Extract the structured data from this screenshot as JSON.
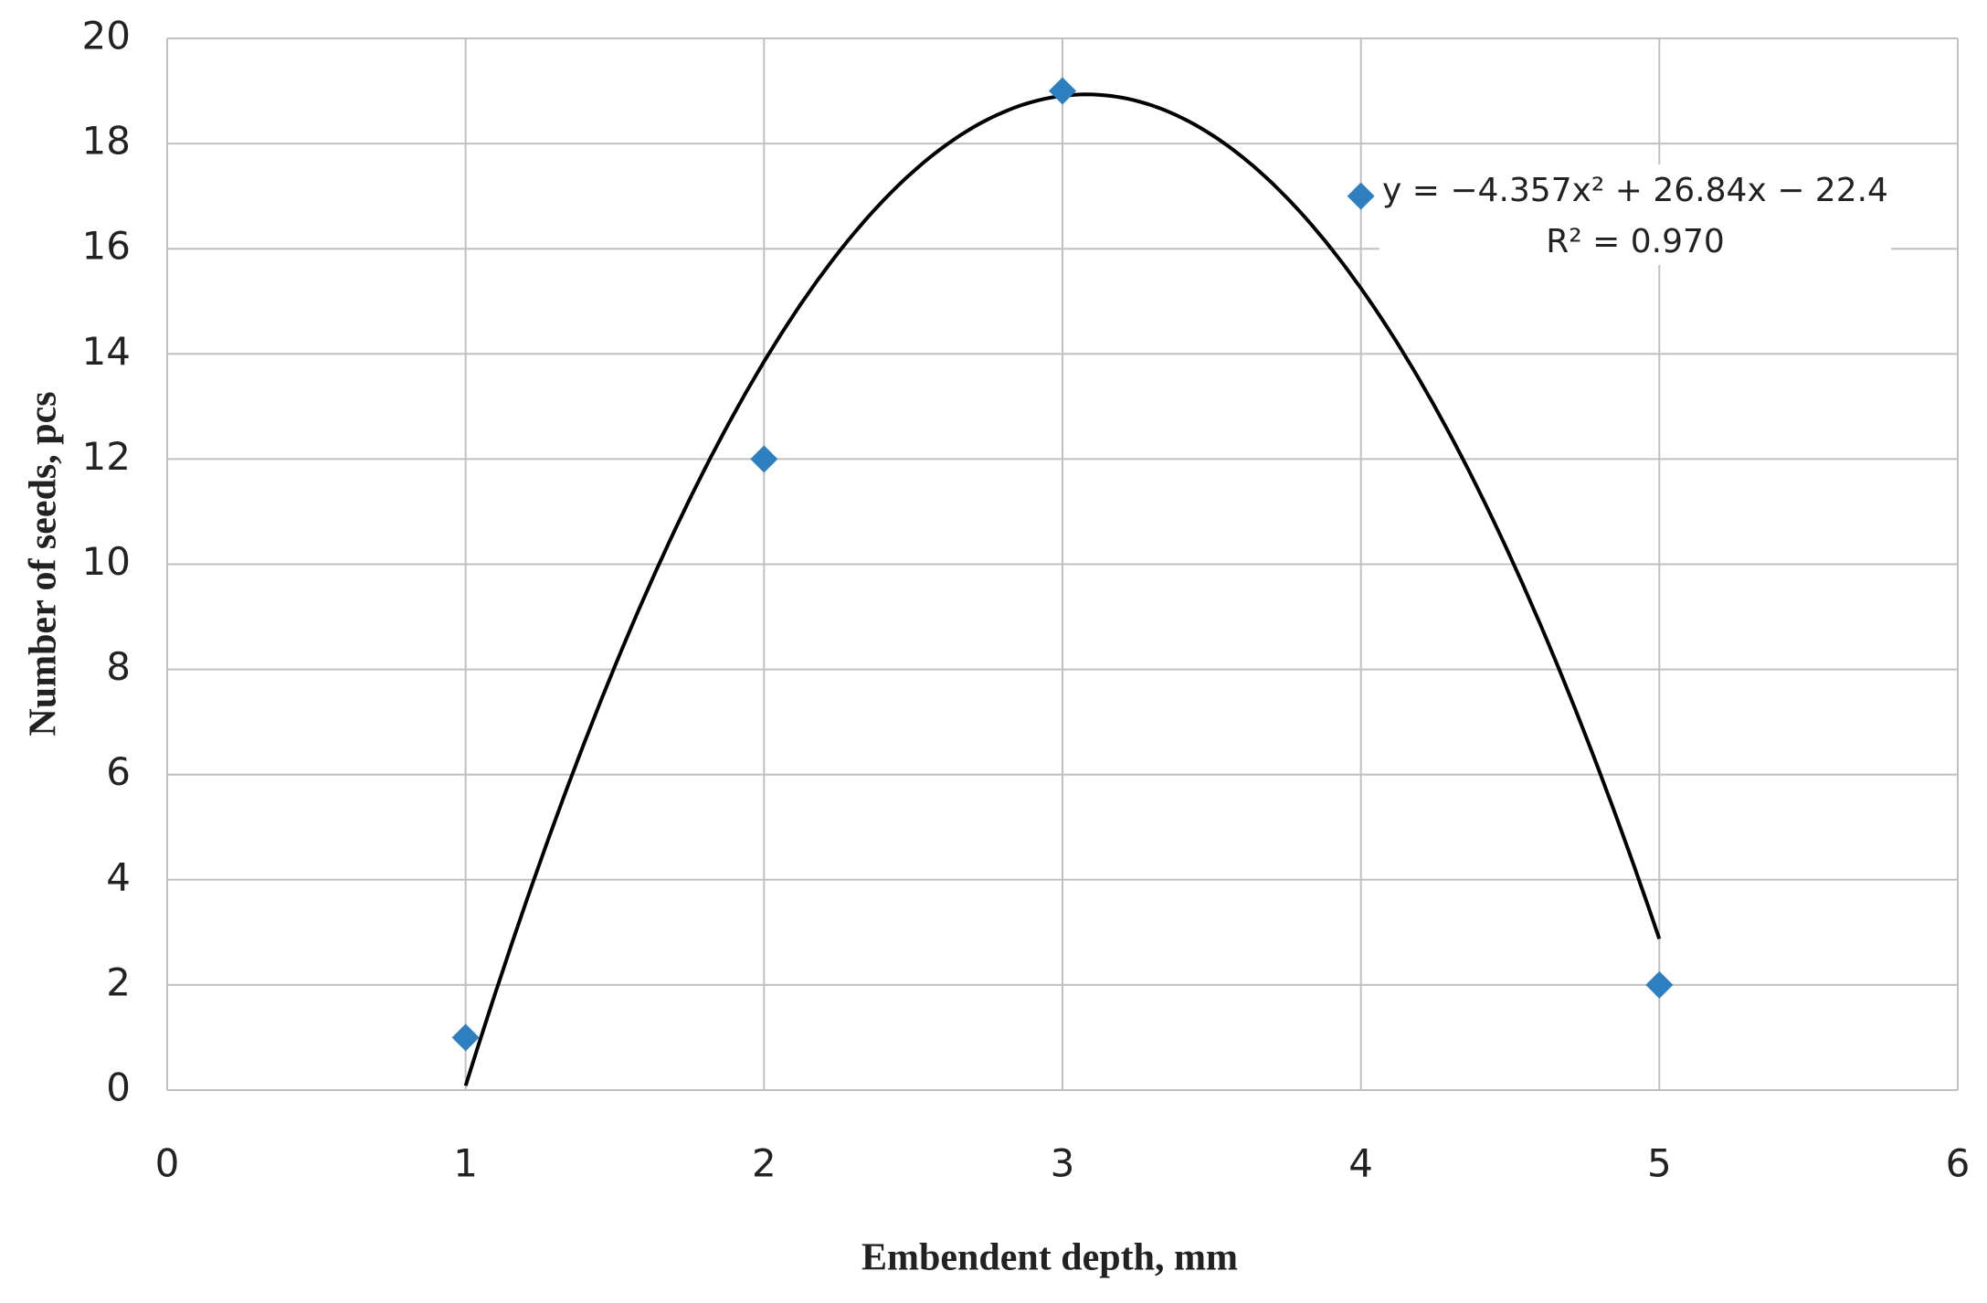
{
  "chart_data": {
    "type": "scatter",
    "x_label": "Embendent depth, mm",
    "y_label": "Number of seeds, pcs",
    "x": [
      1,
      2,
      3,
      4,
      5
    ],
    "values": [
      1,
      12,
      19,
      17,
      2
    ],
    "color": "#2e7fc0",
    "xlim": [
      0,
      6
    ],
    "xticks": [
      0,
      1,
      2,
      3,
      4,
      5,
      6
    ],
    "ylim": [
      0,
      20
    ],
    "yticks": [
      0,
      2,
      4,
      6,
      8,
      10,
      12,
      14,
      16,
      18,
      20
    ],
    "grid": true,
    "trendline": {
      "coefficients": [
        -4.357,
        26.84,
        -22.4
      ],
      "color": "#000000",
      "equation": "y = −4.357x² + 26.84x − 22.4",
      "r_squared_label": "R² = 0.970"
    }
  }
}
